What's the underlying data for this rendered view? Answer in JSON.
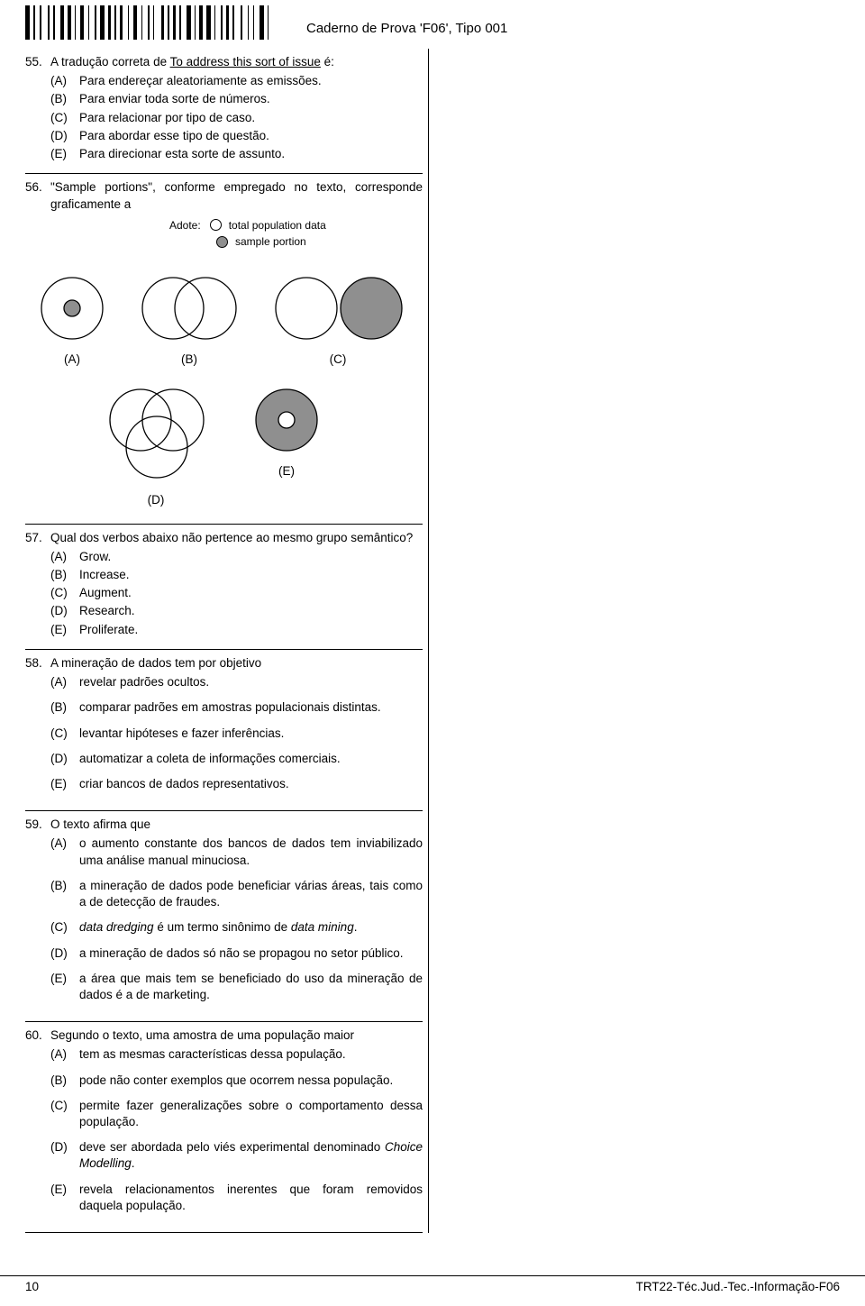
{
  "header": {
    "title": "Caderno de Prova 'F06', Tipo 001"
  },
  "legend": {
    "adopt": "Adote:",
    "total": "total population data",
    "sample": "sample portion"
  },
  "diagrams": {
    "styling": {
      "stroke": "#000000",
      "stroke_width": 1.3,
      "fill_open": "#ffffff",
      "fill_sample": "#8f8f8f",
      "large_radius": 34,
      "small_radius": 9
    },
    "row1": [
      {
        "label": "(A)",
        "type": "single_with_inner_dot"
      },
      {
        "label": "(B)",
        "type": "two_overlap"
      },
      {
        "label": "(C)",
        "type": "two_adjacent_right_filled"
      }
    ],
    "row2": [
      {
        "label": "(D)",
        "type": "three_overlap"
      },
      {
        "label": "(E)",
        "type": "filled_with_inner_hole"
      }
    ]
  },
  "questions": [
    {
      "num": "55.",
      "stem_html": "A tradução correta de <span class='ul'>To address this sort of issue</span> é:",
      "opts": [
        {
          "l": "(A)",
          "t": "Para endereçar aleatoriamente as emissões."
        },
        {
          "l": "(B)",
          "t": "Para enviar toda sorte de números."
        },
        {
          "l": "(C)",
          "t": "Para relacionar por tipo de caso."
        },
        {
          "l": "(D)",
          "t": "Para abordar esse tipo de questão."
        },
        {
          "l": "(E)",
          "t": "Para direcionar esta sorte de assunto."
        }
      ],
      "compact": true
    },
    {
      "num": "56.",
      "stem_html": "\"Sample portions\", conforme empregado no texto, corresponde graficamente a",
      "has_diagram": true
    },
    {
      "num": "57.",
      "stem_html": "Qual dos verbos abaixo não pertence ao mesmo grupo semântico?",
      "opts": [
        {
          "l": "(A)",
          "t": "Grow."
        },
        {
          "l": "(B)",
          "t": "Increase."
        },
        {
          "l": "(C)",
          "t": "Augment."
        },
        {
          "l": "(D)",
          "t": "Research."
        },
        {
          "l": "(E)",
          "t": "Proliferate."
        }
      ],
      "compact": true
    },
    {
      "num": "58.",
      "stem_html": "A mineração de dados tem por objetivo",
      "opts": [
        {
          "l": "(A)",
          "t": "revelar padrões ocultos."
        },
        {
          "l": "(B)",
          "t": "comparar padrões em amostras populacionais distintas."
        },
        {
          "l": "(C)",
          "t": "levantar hipóteses e fazer inferências."
        },
        {
          "l": "(D)",
          "t": "automatizar a coleta de informações comerciais."
        },
        {
          "l": "(E)",
          "t": "criar bancos de dados representativos."
        }
      ]
    },
    {
      "num": "59.",
      "stem_html": "O texto afirma que",
      "opts": [
        {
          "l": "(A)",
          "t": "o aumento constante dos bancos de dados tem inviabilizado uma análise manual minuciosa."
        },
        {
          "l": "(B)",
          "t": "a mineração de dados pode beneficiar várias áreas, tais como a de detecção de fraudes."
        },
        {
          "l": "(C)",
          "html": "<span class='it'>data dredging</span> é um termo sinônimo de <span class='it'>data mining</span>."
        },
        {
          "l": "(D)",
          "t": "a mineração de dados só não se propagou no setor público."
        },
        {
          "l": "(E)",
          "t": "a área que mais tem se beneficiado do uso da mineração de dados é a de marketing."
        }
      ]
    },
    {
      "num": "60.",
      "stem_html": "Segundo o texto, uma amostra de uma população maior",
      "opts": [
        {
          "l": "(A)",
          "t": "tem as mesmas características dessa população."
        },
        {
          "l": "(B)",
          "t": "pode não conter exemplos que ocorrem nessa população."
        },
        {
          "l": "(C)",
          "t": "permite fazer generalizações sobre o comportamento dessa população."
        },
        {
          "l": "(D)",
          "html": "deve ser abordada pelo viés experimental denominado <span class='it'>Choice Modelling</span>."
        },
        {
          "l": "(E)",
          "t": "revela relacionamentos inerentes que foram removidos daquela população."
        }
      ]
    }
  ],
  "footer": {
    "page": "10",
    "code": "TRT22-Téc.Jud.-Tec.-Informação-F06"
  }
}
